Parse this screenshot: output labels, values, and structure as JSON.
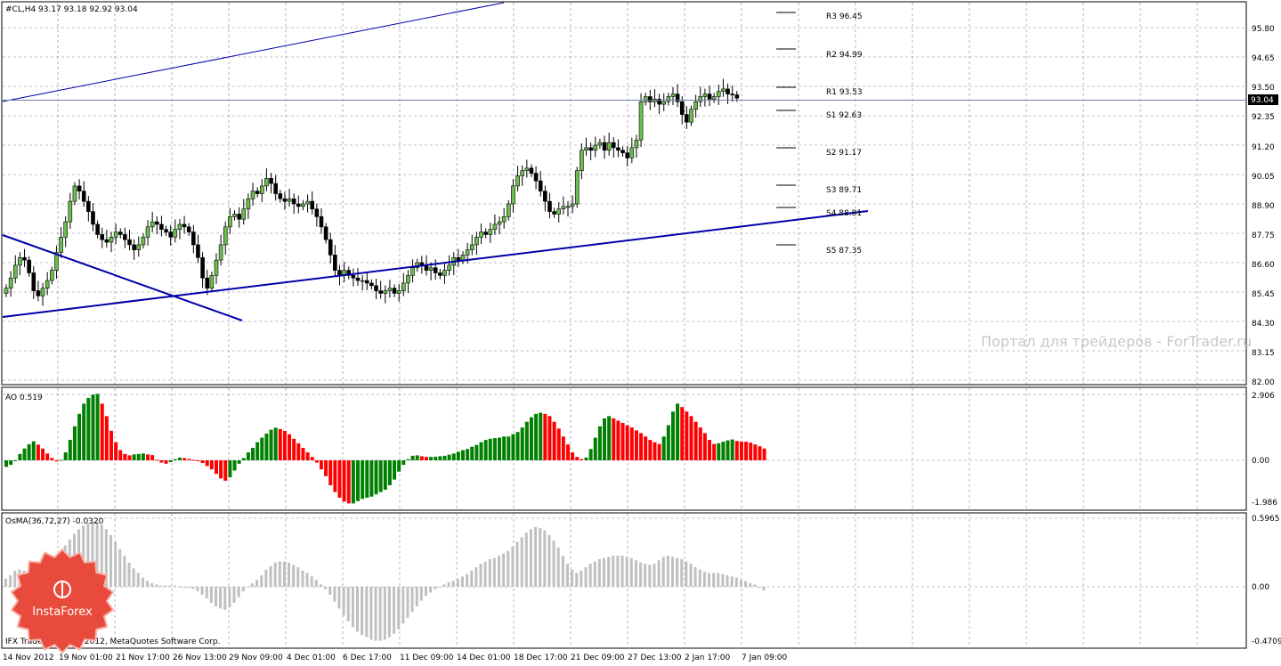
{
  "main_panel": {
    "title": "#CL,H4  93.17 93.18 92.92 93.04",
    "price_axis_labels": [
      "95.80",
      "94.65",
      "93.50",
      "92.35",
      "91.20",
      "90.05",
      "88.90",
      "87.75",
      "86.60",
      "85.45",
      "84.30",
      "83.15",
      "82.00"
    ],
    "current_price": "93.04",
    "pivot_labels": [
      "R3 96.45",
      "R2 94.99",
      "R1 93.53",
      "S1 92.63",
      "S2 91.17",
      "S3 89.71",
      "S4 88.81",
      "S5 87.35"
    ],
    "watermark": "Портал для трейдеров - ForTrader.ru"
  },
  "ao_panel": {
    "title": "AO 0.519",
    "axis_labels": [
      "2.906",
      "0.00",
      "-1.986"
    ]
  },
  "osma_panel": {
    "title": "OsMA(36,72,27) -0.0320",
    "axis_labels": [
      "0.5965",
      "0.00",
      "-0.4709"
    ]
  },
  "copyright": "IFX Trader, © 2001-2012, MetaQuotes Software Corp.",
  "logo_text": "InstaForex",
  "time_axis_labels": [
    "14 Nov 2012",
    "19 Nov 01:00",
    "21 Nov 17:00",
    "26 Nov 13:00",
    "29 Nov 09:00",
    "4 Dec 01:00",
    "6 Dec 17:00",
    "11 Dec 09:00",
    "14 Dec 01:00",
    "18 Dec 17:00",
    "21 Dec 09:00",
    "27 Dec 13:00",
    "2 Jan 17:00",
    "7 Jan 09:00"
  ],
  "colors": {
    "bull": "#008000",
    "bear": "#ff0000",
    "candle_up": "#6abf4b",
    "trendline": "#0000aa",
    "osma": "#c0c0c0",
    "grid": "#8080a0"
  },
  "chart_data": [
    {
      "type": "candlestick",
      "instrument": "#CL",
      "timeframe": "H4",
      "ohlc_last": {
        "open": 93.17,
        "high": 93.18,
        "low": 92.92,
        "close": 93.04
      },
      "ylim": [
        82.0,
        96.4
      ],
      "closes": [
        85.6,
        86.0,
        86.5,
        86.8,
        86.7,
        86.2,
        85.5,
        85.3,
        85.6,
        85.9,
        86.3,
        87.0,
        87.6,
        88.2,
        89.0,
        89.6,
        89.4,
        89.0,
        88.6,
        88.1,
        87.7,
        87.5,
        87.4,
        87.6,
        87.8,
        87.7,
        87.5,
        87.3,
        87.1,
        87.3,
        87.6,
        88.0,
        88.2,
        88.1,
        87.9,
        87.8,
        87.6,
        87.9,
        88.1,
        88.0,
        87.8,
        87.3,
        86.8,
        86.0,
        85.6,
        86.1,
        86.7,
        87.3,
        88.0,
        88.4,
        88.5,
        88.3,
        88.7,
        89.1,
        89.4,
        89.3,
        89.6,
        89.9,
        89.7,
        89.3,
        89.1,
        89.0,
        89.1,
        88.9,
        88.8,
        88.9,
        89.0,
        88.7,
        88.4,
        88.0,
        87.5,
        86.9,
        86.3,
        86.1,
        86.3,
        86.1,
        86.0,
        85.9,
        85.9,
        85.8,
        85.7,
        85.5,
        85.4,
        85.5,
        85.6,
        85.4,
        85.5,
        85.8,
        86.1,
        86.4,
        86.6,
        86.5,
        86.3,
        86.4,
        86.2,
        86.1,
        86.3,
        86.5,
        86.8,
        86.7,
        86.9,
        87.1,
        87.3,
        87.6,
        87.8,
        87.7,
        87.9,
        88.1,
        88.2,
        88.4,
        88.9,
        89.6,
        90.0,
        90.2,
        90.3,
        90.1,
        89.8,
        89.4,
        89.0,
        88.6,
        88.5,
        88.7,
        88.8,
        88.8,
        88.9,
        90.2,
        91.0,
        91.1,
        91.0,
        91.2,
        91.3,
        91.0,
        91.3,
        91.1,
        91.0,
        90.9,
        90.7,
        91.1,
        91.4,
        92.9,
        93.1,
        92.9,
        93.0,
        92.8,
        92.9,
        93.1,
        93.2,
        92.9,
        92.4,
        92.1,
        92.6,
        92.9,
        93.1,
        93.2,
        93.0,
        93.1,
        93.3,
        93.4,
        93.2,
        93.17,
        93.04
      ]
    },
    {
      "type": "bar",
      "name": "AO",
      "ylim": [
        -1.986,
        2.906
      ],
      "values": [
        -0.29,
        -0.2,
        0.0,
        0.28,
        0.52,
        0.71,
        0.84,
        0.69,
        0.52,
        0.3,
        0.1,
        -0.05,
        0.02,
        0.35,
        0.9,
        1.5,
        2.05,
        2.5,
        2.75,
        2.9,
        2.93,
        2.5,
        1.95,
        1.3,
        0.8,
        0.45,
        0.28,
        0.22,
        0.26,
        0.28,
        0.3,
        0.26,
        0.23,
        0.02,
        -0.1,
        -0.15,
        -0.08,
        0.05,
        0.12,
        0.1,
        0.06,
        0.02,
        -0.02,
        -0.12,
        -0.25,
        -0.4,
        -0.6,
        -0.8,
        -0.9,
        -0.75,
        -0.45,
        -0.15,
        0.1,
        0.35,
        0.55,
        0.8,
        1.0,
        1.18,
        1.35,
        1.44,
        1.38,
        1.3,
        1.15,
        0.95,
        0.75,
        0.55,
        0.35,
        0.15,
        -0.1,
        -0.4,
        -0.7,
        -1.1,
        -1.4,
        -1.65,
        -1.82,
        -1.9,
        -1.9,
        -1.8,
        -1.7,
        -1.65,
        -1.6,
        -1.5,
        -1.4,
        -1.3,
        -1.1,
        -0.85,
        -0.5,
        -0.2,
        0.05,
        0.2,
        0.22,
        0.18,
        0.15,
        0.15,
        0.16,
        0.18,
        0.2,
        0.25,
        0.3,
        0.38,
        0.45,
        0.5,
        0.6,
        0.68,
        0.8,
        0.9,
        0.95,
        0.98,
        1.0,
        1.05,
        1.05,
        1.15,
        1.25,
        1.45,
        1.7,
        1.9,
        2.05,
        2.1,
        2.05,
        1.95,
        1.7,
        1.4,
        1.05,
        0.7,
        0.35,
        0.15,
        0.05,
        0.12,
        0.5,
        1.0,
        1.5,
        1.85,
        1.95,
        1.85,
        1.75,
        1.65,
        1.55,
        1.45,
        1.32,
        1.2,
        1.05,
        0.9,
        0.8,
        0.72,
        1.05,
        1.55,
        2.15,
        2.5,
        2.35,
        2.15,
        1.95,
        1.7,
        1.45,
        1.2,
        0.9,
        0.72,
        0.75,
        0.82,
        0.88,
        0.92,
        0.85,
        0.83,
        0.82,
        0.78,
        0.7,
        0.62,
        0.52
      ]
    },
    {
      "type": "bar",
      "name": "OsMA(36,72,27)",
      "ylim": [
        -0.4709,
        0.5965
      ],
      "values": [
        0.07,
        0.1,
        0.14,
        0.15,
        0.14,
        0.13,
        0.11,
        0.09,
        0.1,
        0.12,
        0.17,
        0.23,
        0.3,
        0.36,
        0.41,
        0.46,
        0.5,
        0.53,
        0.55,
        0.56,
        0.56,
        0.54,
        0.5,
        0.45,
        0.39,
        0.33,
        0.27,
        0.21,
        0.16,
        0.12,
        0.08,
        0.05,
        0.03,
        0.02,
        0.01,
        0.01,
        0.01,
        0.01,
        0.0,
        0.0,
        -0.01,
        -0.02,
        -0.04,
        -0.07,
        -0.1,
        -0.14,
        -0.17,
        -0.19,
        -0.2,
        -0.18,
        -0.14,
        -0.09,
        -0.04,
        0.0,
        0.03,
        0.06,
        0.1,
        0.15,
        0.18,
        0.21,
        0.22,
        0.22,
        0.21,
        0.19,
        0.17,
        0.14,
        0.12,
        0.09,
        0.06,
        0.02,
        -0.02,
        -0.07,
        -0.13,
        -0.19,
        -0.25,
        -0.3,
        -0.35,
        -0.39,
        -0.42,
        -0.44,
        -0.46,
        -0.47,
        -0.47,
        -0.46,
        -0.44,
        -0.41,
        -0.37,
        -0.32,
        -0.27,
        -0.22,
        -0.17,
        -0.12,
        -0.08,
        -0.05,
        -0.02,
        0.0,
        0.02,
        0.04,
        0.05,
        0.07,
        0.09,
        0.11,
        0.14,
        0.17,
        0.2,
        0.22,
        0.24,
        0.25,
        0.27,
        0.29,
        0.31,
        0.35,
        0.39,
        0.43,
        0.47,
        0.5,
        0.52,
        0.51,
        0.49,
        0.45,
        0.4,
        0.34,
        0.27,
        0.2,
        0.15,
        0.12,
        0.14,
        0.17,
        0.2,
        0.22,
        0.24,
        0.25,
        0.26,
        0.27,
        0.27,
        0.27,
        0.26,
        0.25,
        0.23,
        0.21,
        0.2,
        0.19,
        0.2,
        0.23,
        0.26,
        0.27,
        0.26,
        0.25,
        0.24,
        0.22,
        0.2,
        0.17,
        0.15,
        0.13,
        0.12,
        0.12,
        0.12,
        0.11,
        0.1,
        0.09,
        0.08,
        0.06,
        0.05,
        0.03,
        0.02,
        -0.01,
        -0.032
      ]
    }
  ]
}
